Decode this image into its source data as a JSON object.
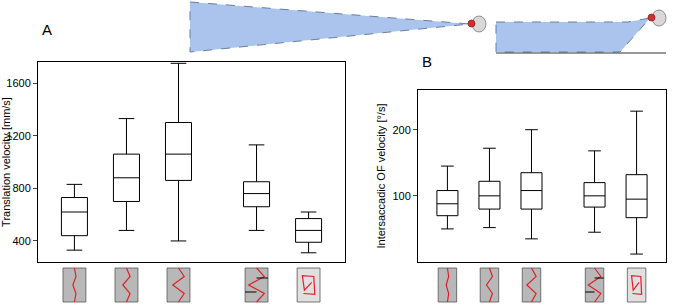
{
  "chart_data": [
    {
      "type": "box",
      "title": "A",
      "y_label": "Translation velocity [mm/s]",
      "x": [
        1,
        2,
        3,
        4.5,
        5.5
      ],
      "lower_whisker": [
        330,
        480,
        400,
        480,
        310
      ],
      "q1": [
        440,
        700,
        860,
        660,
        390
      ],
      "median": [
        620,
        880,
        1060,
        760,
        480
      ],
      "q3": [
        730,
        1060,
        1300,
        850,
        570
      ],
      "upper_whisker": [
        830,
        1330,
        1750,
        1130,
        620
      ],
      "xlim": [
        0.3,
        6.2
      ],
      "ylim": [
        240,
        1760
      ],
      "yticks": [
        400,
        800,
        1200,
        1600
      ],
      "tick_labels": "y",
      "grid": false,
      "color": "#000000"
    },
    {
      "type": "box",
      "title": "B",
      "y_label": "Intersaccadic OF velocity [°/s]",
      "x": [
        1,
        2,
        3,
        4.5,
        5.5
      ],
      "lower_whisker": [
        50,
        52,
        35,
        45,
        12
      ],
      "q1": [
        70,
        80,
        80,
        83,
        67
      ],
      "median": [
        88,
        100,
        108,
        100,
        95
      ],
      "q3": [
        108,
        122,
        135,
        120,
        132
      ],
      "upper_whisker": [
        145,
        172,
        200,
        168,
        228
      ],
      "xlim": [
        0.3,
        6.2
      ],
      "ylim": [
        0,
        260
      ],
      "yticks": [
        100,
        200
      ],
      "tick_labels": "y",
      "grid": false,
      "color": "#000000"
    }
  ]
}
